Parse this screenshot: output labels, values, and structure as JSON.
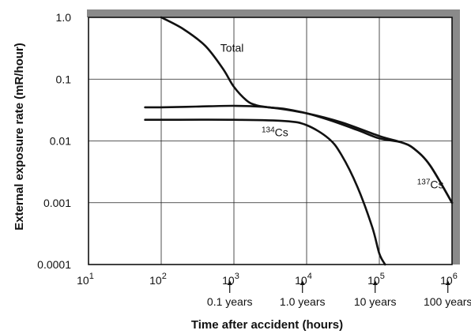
{
  "chart_data": {
    "type": "line",
    "title": "",
    "xlabel": "Time after accident (hours)",
    "ylabel": "External exposure rate (mR/hour)",
    "xscale": "log",
    "yscale": "log",
    "xlim": [
      10,
      1000000
    ],
    "ylim": [
      0.0001,
      1.0
    ],
    "grid": true,
    "x_ticks": [
      {
        "value": 10,
        "base": "10",
        "exp": "1"
      },
      {
        "value": 100,
        "base": "10",
        "exp": "2"
      },
      {
        "value": 1000,
        "base": "10",
        "exp": "3"
      },
      {
        "value": 10000,
        "base": "10",
        "exp": "4"
      },
      {
        "value": 100000,
        "base": "10",
        "exp": "5"
      },
      {
        "value": 1000000,
        "base": "10",
        "exp": "6"
      }
    ],
    "y_ticks": [
      {
        "value": 1.0,
        "label": "1.0"
      },
      {
        "value": 0.1,
        "label": "0.1"
      },
      {
        "value": 0.01,
        "label": "0.01"
      },
      {
        "value": 0.001,
        "label": "0.001"
      },
      {
        "value": 0.0001,
        "label": "0.0001"
      }
    ],
    "series": [
      {
        "name": "Total",
        "x": [
          100,
          200,
          400,
          700,
          1000,
          1500,
          2000,
          3000,
          5000,
          10000,
          20000,
          50000,
          100000,
          200000,
          300000,
          500000,
          1000000
        ],
        "y": [
          1.0,
          0.65,
          0.35,
          0.15,
          0.075,
          0.045,
          0.038,
          0.035,
          0.033,
          0.028,
          0.022,
          0.015,
          0.011,
          0.0095,
          0.0075,
          0.004,
          0.001
        ]
      },
      {
        "name": "",
        "x": [
          60,
          100,
          300,
          1000,
          3000,
          10000,
          30000,
          100000,
          200000,
          300000,
          500000,
          1000000
        ],
        "y": [
          0.035,
          0.035,
          0.036,
          0.037,
          0.035,
          0.028,
          0.02,
          0.012,
          0.0095,
          0.0075,
          0.004,
          0.001
        ]
      },
      {
        "name": "",
        "x": [
          60,
          100,
          1000,
          5000,
          10000,
          20000,
          30000,
          50000,
          80000,
          100000,
          120000
        ],
        "y": [
          0.022,
          0.022,
          0.022,
          0.021,
          0.018,
          0.011,
          0.006,
          0.0018,
          0.0004,
          0.00015,
          0.0001
        ]
      }
    ],
    "curve_labels": [
      {
        "text": "Total",
        "x": 650,
        "y": 0.28
      },
      {
        "pre": "134",
        "text": "Cs",
        "x": 2400,
        "y": 0.012
      },
      {
        "pre": "137",
        "text": "Cs",
        "x": 330000,
        "y": 0.0017
      }
    ],
    "year_markers": [
      {
        "label": "0.1 years",
        "x": 876
      },
      {
        "label": "1.0 years",
        "x": 8760
      },
      {
        "label": "10 years",
        "x": 87600
      },
      {
        "label": "100 years",
        "x": 876000
      }
    ]
  }
}
